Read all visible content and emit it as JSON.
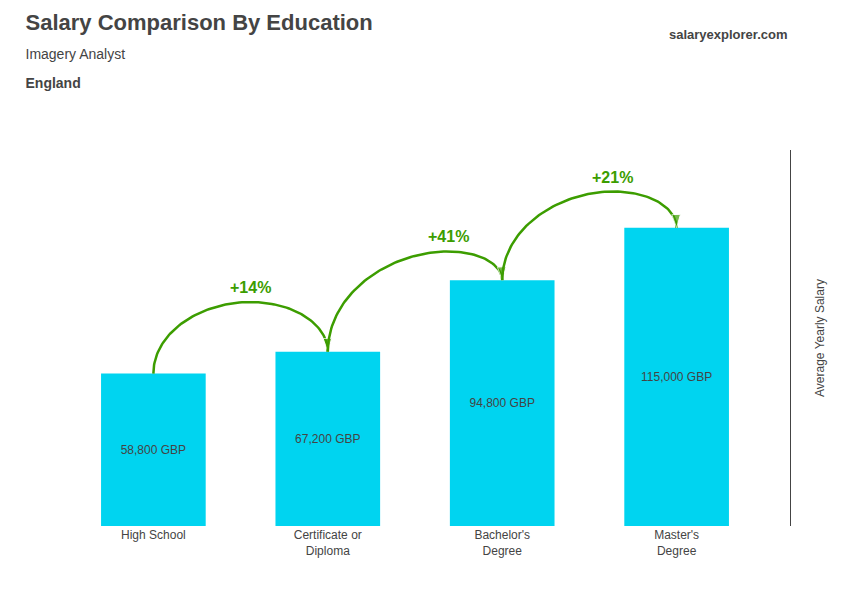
{
  "chart_data": {
    "type": "bar",
    "title": "Salary Comparison By Education",
    "subtitle": [
      "Imagery Analyst",
      "England"
    ],
    "ylabel": "Average Yearly Salary",
    "categories": [
      "High School",
      "Certificate or\nDiploma",
      "Bachelor's\nDegree",
      "Master's\nDegree"
    ],
    "values": [
      58800,
      67200,
      94800,
      115000
    ],
    "value_labels": [
      "58,800 GBP",
      "67,200 GBP",
      "94,800 GBP",
      "115,000 GBP"
    ],
    "data_labels": true,
    "color": "#00d4f0",
    "ylim": [
      0,
      145000
    ],
    "tick_labels": "x",
    "grid": false,
    "annotations": [
      {
        "text": "+14%",
        "from": "High School",
        "to": "Certificate or\nDiploma",
        "color": "#3c9d00"
      },
      {
        "text": "+41%",
        "from": "Certificate or\nDiploma",
        "to": "Bachelor's\nDegree",
        "color": "#3c9d00"
      },
      {
        "text": "+21%",
        "from": "Bachelor's\nDegree",
        "to": "Master's\nDegree",
        "color": "#3c9d00"
      },
      {
        "text": "salaryexplorer.com"
      }
    ]
  }
}
